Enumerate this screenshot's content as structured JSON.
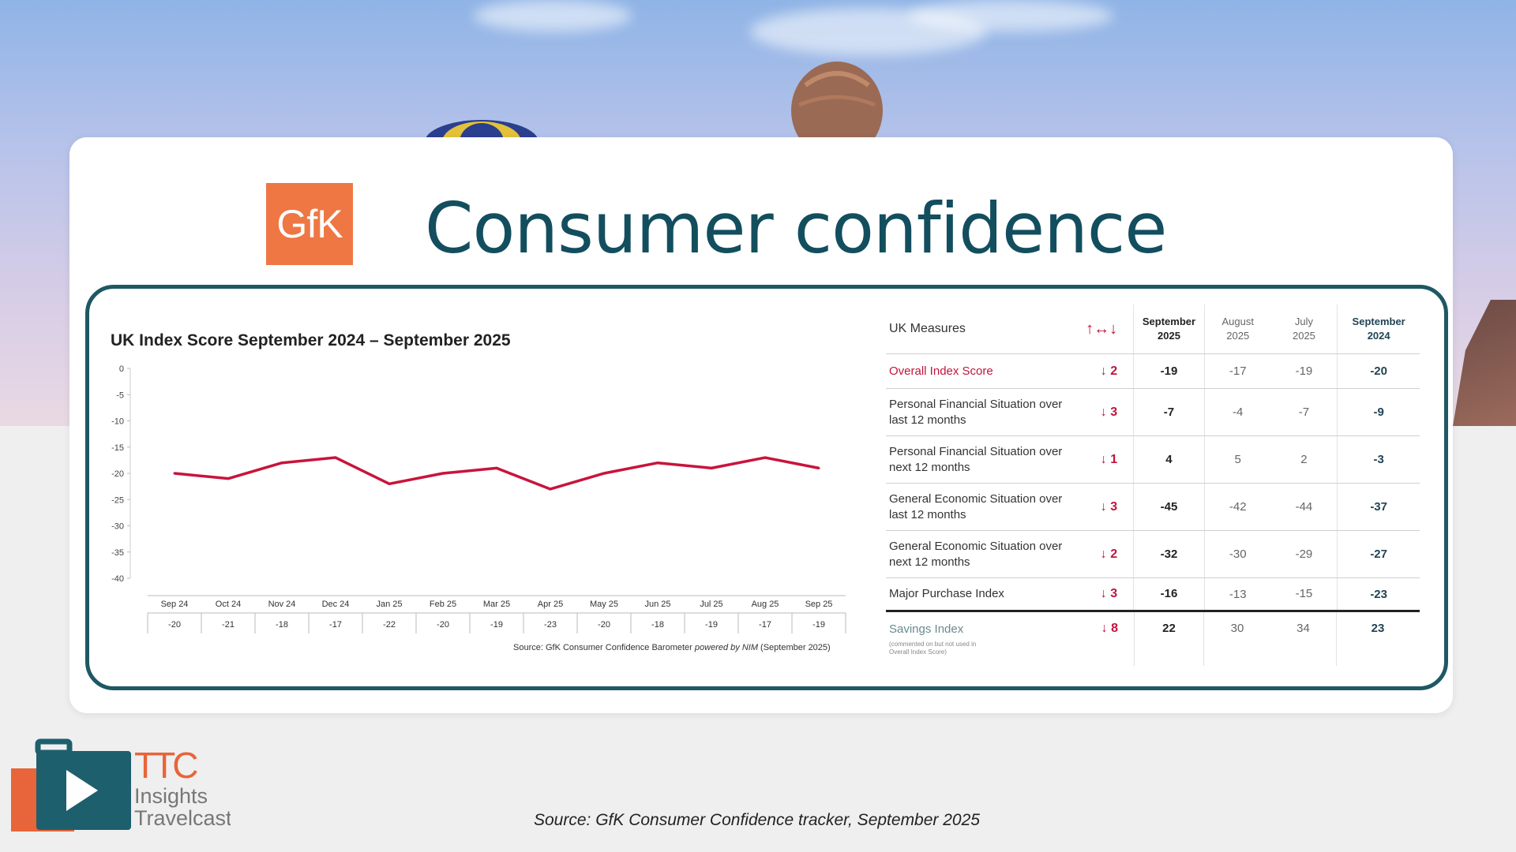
{
  "header": {
    "title": "Consumer confidence",
    "logo_text": "GfK"
  },
  "chart_data": {
    "type": "line",
    "title": "UK Index Score September 2024 – September 2025",
    "categories": [
      "Sep 24",
      "Oct 24",
      "Nov 24",
      "Dec 24",
      "Jan 25",
      "Feb 25",
      "Mar 25",
      "Apr 25",
      "May 25",
      "Jun 25",
      "Jul 25",
      "Aug 25",
      "Sep 25"
    ],
    "values": [
      -20,
      -21,
      -18,
      -17,
      -22,
      -20,
      -19,
      -23,
      -20,
      -18,
      -19,
      -17,
      -19
    ],
    "value_labels": [
      "-20",
      "-21",
      "-18",
      "-17",
      "-22",
      "-20",
      "-19",
      "-23",
      "-20",
      "-18",
      "-19",
      "-17",
      "-19"
    ],
    "yticks": [
      "0",
      "-5",
      "-10",
      "-15",
      "-20",
      "-25",
      "-30",
      "-35",
      "-40"
    ],
    "ylim": [
      -40,
      0
    ],
    "grid": false,
    "line_color": "#c8143c",
    "source_prefix": "Source: GfK Consumer Confidence Barometer ",
    "source_italic": "powered by NIM",
    "source_suffix": " (September 2025)"
  },
  "table": {
    "header": {
      "measures": "UK Measures",
      "arrows": "↑↔↓",
      "col1": [
        "September",
        "2025"
      ],
      "col2": [
        "August",
        "2025"
      ],
      "col3": [
        "July",
        "2025"
      ],
      "col4": [
        "September",
        "2024"
      ]
    },
    "rows": [
      {
        "name": "Overall Index Score",
        "arrow": "↓",
        "change": "2",
        "sep25": "-19",
        "aug25": "-17",
        "jul25": "-19",
        "sep24": "-20"
      },
      {
        "name": "Personal Financial Situation over last 12 months",
        "arrow": "↓",
        "change": "3",
        "sep25": "-7",
        "aug25": "-4",
        "jul25": "-7",
        "sep24": "-9"
      },
      {
        "name": "Personal Financial Situation over next 12 months",
        "arrow": "↓",
        "change": "1",
        "sep25": "4",
        "aug25": "5",
        "jul25": "2",
        "sep24": "-3"
      },
      {
        "name": "General Economic Situation over last 12 months",
        "arrow": "↓",
        "change": "3",
        "sep25": "-45",
        "aug25": "-42",
        "jul25": "-44",
        "sep24": "-37"
      },
      {
        "name": "General Economic Situation over next 12 months",
        "arrow": "↓",
        "change": "2",
        "sep25": "-32",
        "aug25": "-30",
        "jul25": "-29",
        "sep24": "-27"
      },
      {
        "name": "Major Purchase Index",
        "arrow": "↓",
        "change": "3",
        "sep25": "-16",
        "aug25": "-13",
        "jul25": "-15",
        "sep24": "-23"
      },
      {
        "name": "Savings Index",
        "note": "(commented on but not used in Overall Index Score)",
        "arrow": "↓",
        "change": "8",
        "sep25": "22",
        "aug25": "30",
        "jul25": "34",
        "sep24": "23"
      }
    ]
  },
  "footer": {
    "source": "Source: GfK Consumer Confidence tracker,  September 2025",
    "ttc_brand": "TTC",
    "ttc_line1": "Insights",
    "ttc_line2": "Travelcast"
  },
  "colors": {
    "title": "#134e5e",
    "frame": "#1e5863",
    "gfk_orange": "#ee7744",
    "accent_red": "#c0143c"
  }
}
